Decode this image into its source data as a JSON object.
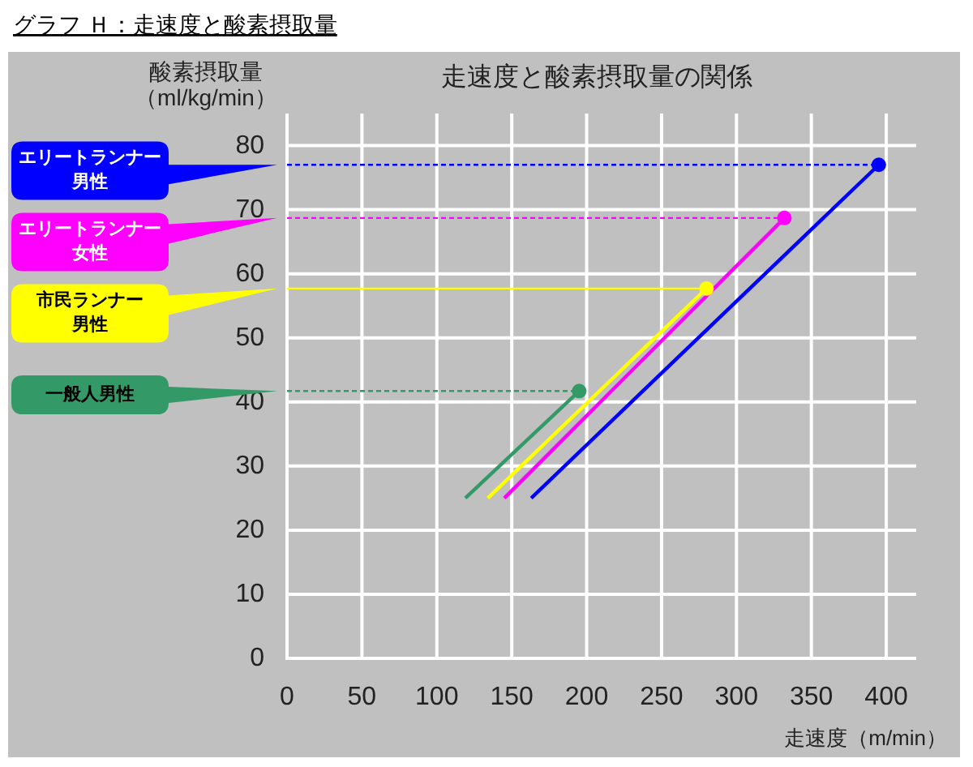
{
  "chart_data": {
    "type": "line",
    "title": "グラフ Ｈ：走速度と酸素摂取量",
    "subtitle": "走速度と酸素摂取量の関係",
    "xlabel": "走速度（m/min）",
    "ylabel": "酸素摂取量（ml/kg/min）",
    "xlim": [
      0,
      420
    ],
    "ylim": [
      0,
      85
    ],
    "xticks": [
      0,
      50,
      100,
      150,
      200,
      250,
      300,
      350,
      400
    ],
    "yticks": [
      0,
      10,
      20,
      30,
      40,
      50,
      60,
      70,
      80
    ],
    "grid": true,
    "legend": "left",
    "series": [
      {
        "name": "エリートランナー男性",
        "color": "#0000ff",
        "x": [
          163,
          395
        ],
        "values": [
          25,
          77
        ]
      },
      {
        "name": "エリートランナー女性",
        "color": "#ff00ff",
        "x": [
          145,
          332
        ],
        "values": [
          25,
          68.7
        ]
      },
      {
        "name": "市民ランナー男性",
        "color": "#ffff00",
        "x": [
          134,
          280
        ],
        "values": [
          25,
          57.7
        ]
      },
      {
        "name": "一般人男性",
        "color": "#339966",
        "x": [
          119,
          195
        ],
        "values": [
          25,
          41.7
        ]
      },
      {
        "color": "#0000ff",
        "x": [
          0,
          395
        ],
        "values": [
          77,
          77
        ],
        "line_style": "dashed"
      },
      {
        "color": "#ff00ff",
        "x": [
          0,
          332
        ],
        "values": [
          68.7,
          68.7
        ],
        "line_style": "dashed"
      },
      {
        "color": "#ffff00",
        "x": [
          0,
          280
        ],
        "values": [
          57.7,
          57.7
        ],
        "line_style": "solid"
      },
      {
        "color": "#339966",
        "x": [
          0,
          195
        ],
        "values": [
          41.7,
          41.7
        ],
        "line_style": "dashed"
      },
      {
        "type": "scatter",
        "marker": "circle",
        "x": [
          395,
          332,
          280,
          195
        ],
        "values": [
          77,
          68.7,
          57.7,
          41.7
        ],
        "colors": [
          "#0000ff",
          "#ff00ff",
          "#ffff00",
          "#339966"
        ]
      }
    ]
  }
}
